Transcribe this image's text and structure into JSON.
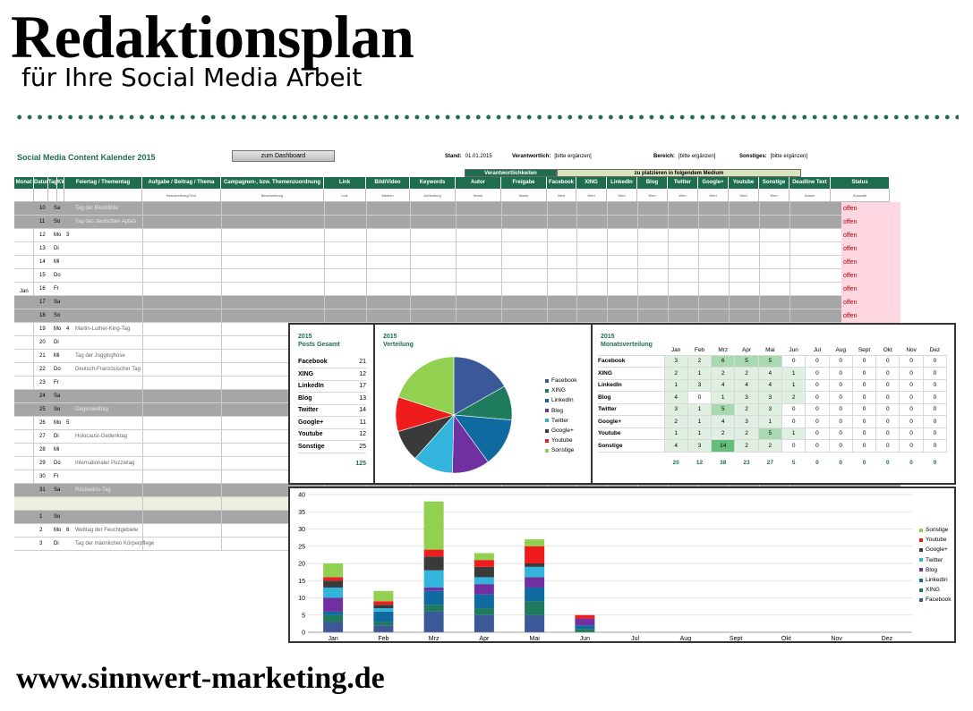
{
  "slide": {
    "title": "Redaktionsplan",
    "subtitle": "für Ihre Social Media Arbeit",
    "footer": "www.sinnwert-marketing.de"
  },
  "sheet": {
    "title": "Social Media Content Kalender 2015",
    "dashboard_button": "zum Dashboard",
    "stand_label": "Stand:",
    "stand_value": "01.01.2015",
    "verantwortlich_label": "Verantwortlich:",
    "verantwortlich_value": "[bitte ergänzen]",
    "bereich_label": "Bereich:",
    "bereich_value": "[bitte ergänzen]",
    "sonstiges_label": "Sonstiges:",
    "sonstiges_value": "[bitte ergänzen]",
    "group_responsible": "Verantwortlichkeiten",
    "group_media": "zu platzieren in folgendem Medium",
    "headers": [
      "Monat",
      "Datum",
      "Tag",
      "KW",
      "Feiertag / Thementag",
      "Aufgabe / Beitrag / Thema",
      "Campagnen-, bzw. Themenzuordnung",
      "Link",
      "Bild/Video",
      "Keywords",
      "Autor",
      "Freigabe",
      "Facebook",
      "XING",
      "LinkedIn",
      "Blog",
      "Twitter",
      "Google+",
      "Youtube",
      "Sonstige",
      "Deadline Text",
      "Status"
    ],
    "subheaders": [
      "",
      "",
      "",
      "",
      "",
      "Beschreibung/Text",
      "Beschreibung",
      "Link",
      "Medien",
      "Anhäufung",
      "Name",
      "Name",
      "Wert",
      "Wert",
      "Wert",
      "Wert",
      "Wert",
      "Wert",
      "Wert",
      "Wert",
      "Datum",
      "Auswahl"
    ],
    "month_label": "Jan",
    "rows": [
      {
        "d": "10",
        "t": "Sa",
        "kw": "",
        "h": "Tag der Blockflöte",
        "gray": true,
        "st": "offen"
      },
      {
        "d": "11",
        "t": "So",
        "kw": "",
        "h": "Tag des deutschen Apfels",
        "gray": true,
        "st": "offen"
      },
      {
        "d": "12",
        "t": "Mo",
        "kw": "3",
        "h": "",
        "gray": false,
        "st": "offen"
      },
      {
        "d": "13",
        "t": "Di",
        "kw": "",
        "h": "",
        "gray": false,
        "st": "offen"
      },
      {
        "d": "14",
        "t": "Mi",
        "kw": "",
        "h": "",
        "gray": false,
        "st": "offen"
      },
      {
        "d": "15",
        "t": "Do",
        "kw": "",
        "h": "",
        "gray": false,
        "st": "offen"
      },
      {
        "d": "16",
        "t": "Fr",
        "kw": "",
        "h": "",
        "gray": false,
        "st": "offen"
      },
      {
        "d": "17",
        "t": "Sa",
        "kw": "",
        "h": "",
        "gray": true,
        "st": "offen"
      },
      {
        "d": "18",
        "t": "So",
        "kw": "",
        "h": "",
        "gray": true,
        "st": "offen"
      },
      {
        "d": "19",
        "t": "Mo",
        "kw": "4",
        "h": "Martin-Luther-King-Tag",
        "gray": false,
        "st": ""
      },
      {
        "d": "20",
        "t": "Di",
        "kw": "",
        "h": "",
        "gray": false,
        "st": ""
      },
      {
        "d": "21",
        "t": "Mi",
        "kw": "",
        "h": "Tag der Jogginghose",
        "gray": false,
        "st": ""
      },
      {
        "d": "22",
        "t": "Do",
        "kw": "",
        "h": "Deutsch-Französischer Tag",
        "gray": false,
        "st": ""
      },
      {
        "d": "23",
        "t": "Fr",
        "kw": "",
        "h": "",
        "gray": false,
        "st": ""
      },
      {
        "d": "24",
        "t": "Sa",
        "kw": "",
        "h": "",
        "gray": true,
        "st": ""
      },
      {
        "d": "25",
        "t": "So",
        "kw": "",
        "h": "Gegenwelttag",
        "gray": true,
        "st": ""
      },
      {
        "d": "26",
        "t": "Mo",
        "kw": "5",
        "h": "",
        "gray": false,
        "st": ""
      },
      {
        "d": "27",
        "t": "Di",
        "kw": "",
        "h": "Holocaust-Gedenktag",
        "gray": false,
        "st": ""
      },
      {
        "d": "28",
        "t": "Mi",
        "kw": "",
        "h": "",
        "gray": false,
        "st": ""
      },
      {
        "d": "29",
        "t": "Do",
        "kw": "",
        "h": "Internationaler Puzzletag",
        "gray": false,
        "st": ""
      },
      {
        "d": "30",
        "t": "Fr",
        "kw": "",
        "h": "",
        "gray": false,
        "st": ""
      },
      {
        "d": "31",
        "t": "Sa",
        "kw": "",
        "h": "Rückwärts-Tag",
        "gray": true,
        "st": ""
      },
      {
        "d": "",
        "t": "",
        "kw": "",
        "h": "",
        "sep": true,
        "st": ""
      },
      {
        "d": "1",
        "t": "So",
        "kw": "",
        "h": "",
        "gray": true,
        "st": ""
      },
      {
        "d": "2",
        "t": "Mo",
        "kw": "6",
        "h": "Welttag der Feuchtgebiete",
        "gray": false,
        "st": ""
      },
      {
        "d": "3",
        "t": "Di",
        "kw": "",
        "h": "Tag der männlichen Körperpflege",
        "gray": false,
        "st": ""
      }
    ]
  },
  "posts_panel": {
    "year": "2015",
    "title": "Posts Gesamt",
    "items": [
      {
        "label": "Facebook",
        "value": "21"
      },
      {
        "label": "XING",
        "value": "12"
      },
      {
        "label": "LinkedIn",
        "value": "17"
      },
      {
        "label": "Blog",
        "value": "13"
      },
      {
        "label": "Twitter",
        "value": "14"
      },
      {
        "label": "Google+",
        "value": "11"
      },
      {
        "label": "Youtube",
        "value": "12"
      },
      {
        "label": "Sonstige",
        "value": "25"
      }
    ],
    "total": "125"
  },
  "pie_panel": {
    "year": "2015",
    "title": "Verteilung",
    "colors": [
      "#3b5998",
      "#1e7b5e",
      "#0e6a9f",
      "#7030a0",
      "#33b4dc",
      "#3a3a3a",
      "#ee1c1c",
      "#92d050"
    ]
  },
  "month_panel": {
    "year": "2015",
    "title": "Monatsverteilung",
    "months": [
      "Jan",
      "Feb",
      "Mrz",
      "Apr",
      "Mai",
      "Jun",
      "Jul",
      "Aug",
      "Sept",
      "Okt",
      "Nov",
      "Dez"
    ],
    "rows": [
      {
        "label": "Facebook",
        "values": [
          3,
          2,
          6,
          5,
          5,
          0,
          0,
          0,
          0,
          0,
          0,
          0
        ]
      },
      {
        "label": "XING",
        "values": [
          2,
          1,
          2,
          2,
          4,
          1,
          0,
          0,
          0,
          0,
          0,
          0
        ]
      },
      {
        "label": "LinkedIn",
        "values": [
          1,
          3,
          4,
          4,
          4,
          1,
          0,
          0,
          0,
          0,
          0,
          0
        ]
      },
      {
        "label": "Blog",
        "values": [
          4,
          0,
          1,
          3,
          3,
          2,
          0,
          0,
          0,
          0,
          0,
          0
        ]
      },
      {
        "label": "Twitter",
        "values": [
          3,
          1,
          5,
          2,
          3,
          0,
          0,
          0,
          0,
          0,
          0,
          0
        ]
      },
      {
        "label": "Google+",
        "values": [
          2,
          1,
          4,
          3,
          1,
          0,
          0,
          0,
          0,
          0,
          0,
          0
        ]
      },
      {
        "label": "Youtube",
        "values": [
          1,
          1,
          2,
          2,
          5,
          1,
          0,
          0,
          0,
          0,
          0,
          0
        ]
      },
      {
        "label": "Sonstige",
        "values": [
          4,
          3,
          14,
          2,
          2,
          0,
          0,
          0,
          0,
          0,
          0,
          0
        ]
      }
    ],
    "totals": [
      20,
      12,
      38,
      23,
      27,
      5,
      0,
      0,
      0,
      0,
      0,
      0
    ]
  },
  "chart_data": [
    {
      "type": "pie",
      "title": "Verteilung",
      "categories": [
        "Facebook",
        "XING",
        "LinkedIn",
        "Blog",
        "Twitter",
        "Google+",
        "Youtube",
        "Sonstige"
      ],
      "values": [
        21,
        12,
        17,
        13,
        14,
        11,
        12,
        25
      ],
      "legend": "right"
    },
    {
      "type": "bar",
      "stacked": true,
      "categories": [
        "Jan",
        "Feb",
        "Mrz",
        "Apr",
        "Mai",
        "Jun",
        "Jul",
        "Aug",
        "Sept",
        "Okt",
        "Nov",
        "Dez"
      ],
      "series": [
        {
          "name": "Facebook",
          "values": [
            3,
            2,
            6,
            5,
            5,
            0,
            0,
            0,
            0,
            0,
            0,
            0
          ]
        },
        {
          "name": "XING",
          "values": [
            2,
            1,
            2,
            2,
            4,
            1,
            0,
            0,
            0,
            0,
            0,
            0
          ]
        },
        {
          "name": "LinkedIn",
          "values": [
            1,
            3,
            4,
            4,
            4,
            1,
            0,
            0,
            0,
            0,
            0,
            0
          ]
        },
        {
          "name": "Blog",
          "values": [
            4,
            0,
            1,
            3,
            3,
            2,
            0,
            0,
            0,
            0,
            0,
            0
          ]
        },
        {
          "name": "Twitter",
          "values": [
            3,
            1,
            5,
            2,
            3,
            0,
            0,
            0,
            0,
            0,
            0,
            0
          ]
        },
        {
          "name": "Google+",
          "values": [
            2,
            1,
            4,
            3,
            1,
            0,
            0,
            0,
            0,
            0,
            0,
            0
          ]
        },
        {
          "name": "Youtube",
          "values": [
            1,
            1,
            2,
            2,
            5,
            1,
            0,
            0,
            0,
            0,
            0,
            0
          ]
        },
        {
          "name": "Sonstige",
          "values": [
            4,
            3,
            14,
            2,
            2,
            0,
            0,
            0,
            0,
            0,
            0,
            0
          ]
        }
      ],
      "ylim": [
        0,
        40
      ],
      "yticks": [
        0,
        5,
        10,
        15,
        20,
        25,
        30,
        35,
        40
      ],
      "grid": true,
      "legend": "right"
    }
  ]
}
